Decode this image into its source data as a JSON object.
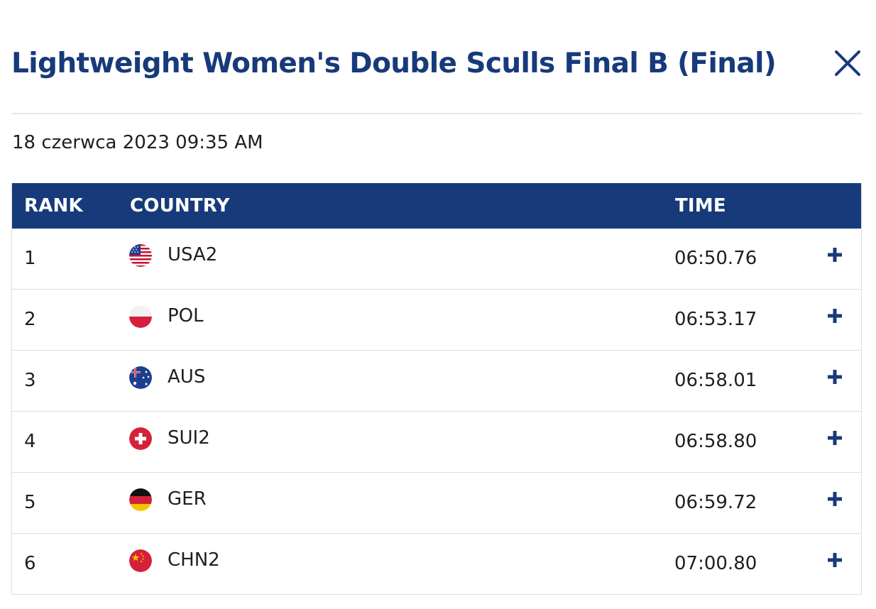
{
  "header": {
    "title": "Lightweight Women's Double Sculls Final B (Final)",
    "close_icon": "close-icon"
  },
  "event": {
    "date": "18 czerwca 2023 09:35 AM"
  },
  "table": {
    "columns": [
      "RANK",
      "COUNTRY",
      "TIME"
    ],
    "rows": [
      {
        "rank": "1",
        "country": "USA2",
        "time": "06:50.76",
        "flag": "usa-flag-icon"
      },
      {
        "rank": "2",
        "country": "POL",
        "time": "06:53.17",
        "flag": "poland-flag-icon"
      },
      {
        "rank": "3",
        "country": "AUS",
        "time": "06:58.01",
        "flag": "australia-flag-icon"
      },
      {
        "rank": "4",
        "country": "SUI2",
        "time": "06:58.80",
        "flag": "switzerland-flag-icon"
      },
      {
        "rank": "5",
        "country": "GER",
        "time": "06:59.72",
        "flag": "germany-flag-icon"
      },
      {
        "rank": "6",
        "country": "CHN2",
        "time": "07:00.80",
        "flag": "china-flag-icon"
      }
    ],
    "expand_icon": "plus-icon"
  },
  "colors": {
    "brand": "#173a7a",
    "divider": "#e6e8ec",
    "row_border": "#d9dde3"
  }
}
